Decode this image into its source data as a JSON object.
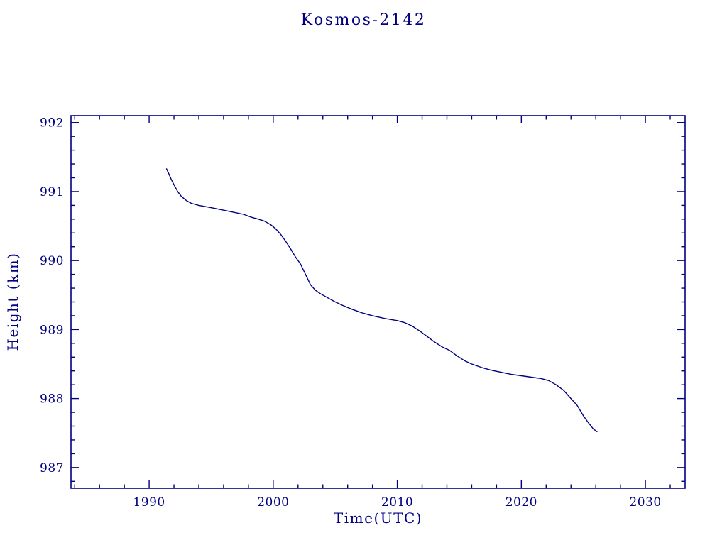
{
  "chart_data": {
    "type": "line",
    "title": "Kosmos-2142",
    "xlabel": "Time(UTC)",
    "ylabel": "Height (km)",
    "xlim": [
      1983.7,
      2033.2
    ],
    "ylim": [
      986.7,
      992.1
    ],
    "x_major_ticks": [
      1990,
      2000,
      2010,
      2020,
      2030
    ],
    "x_minor_step": 2,
    "y_major_ticks": [
      987,
      988,
      989,
      990,
      991,
      992
    ],
    "y_minor_step": 0.2,
    "grid": false,
    "legend": null,
    "axis_color": "#000080",
    "line_color": "#000080",
    "background": "#ffffff",
    "series": [
      {
        "name": "Kosmos-2142 height",
        "x": [
          1991.4,
          1991.6,
          1991.8,
          1992.0,
          1992.3,
          1992.6,
          1993.0,
          1993.4,
          1994.0,
          1994.6,
          1995.2,
          1996.0,
          1996.8,
          1997.6,
          1998.2,
          1998.8,
          1999.3,
          1999.8,
          2000.2,
          2000.6,
          2001.0,
          2001.4,
          2001.8,
          2002.2,
          2002.6,
          2003.0,
          2003.4,
          2003.8,
          2004.4,
          2005.0,
          2005.6,
          2006.4,
          2007.2,
          2008.0,
          2009.0,
          2010.0,
          2010.6,
          2011.2,
          2011.8,
          2012.4,
          2013.0,
          2013.6,
          2014.2,
          2014.8,
          2015.4,
          2016.0,
          2016.8,
          2017.6,
          2018.4,
          2019.2,
          2020.0,
          2020.8,
          2021.6,
          2022.2,
          2022.8,
          2023.4,
          2024.0,
          2024.5,
          2025.0,
          2025.4,
          2025.8,
          2026.1
        ],
        "y": [
          991.33,
          991.25,
          991.17,
          991.1,
          991.0,
          990.93,
          990.87,
          990.83,
          990.8,
          990.78,
          990.76,
          990.73,
          990.7,
          990.67,
          990.63,
          990.6,
          990.57,
          990.52,
          990.46,
          990.38,
          990.28,
          990.17,
          990.05,
          989.95,
          989.8,
          989.65,
          989.57,
          989.52,
          989.46,
          989.4,
          989.35,
          989.29,
          989.24,
          989.2,
          989.16,
          989.13,
          989.1,
          989.05,
          988.98,
          988.9,
          988.82,
          988.75,
          988.7,
          988.62,
          988.55,
          988.5,
          988.45,
          988.41,
          988.38,
          988.35,
          988.33,
          988.31,
          988.29,
          988.26,
          988.2,
          988.12,
          988.0,
          987.9,
          987.75,
          987.65,
          987.56,
          987.52
        ]
      }
    ]
  }
}
